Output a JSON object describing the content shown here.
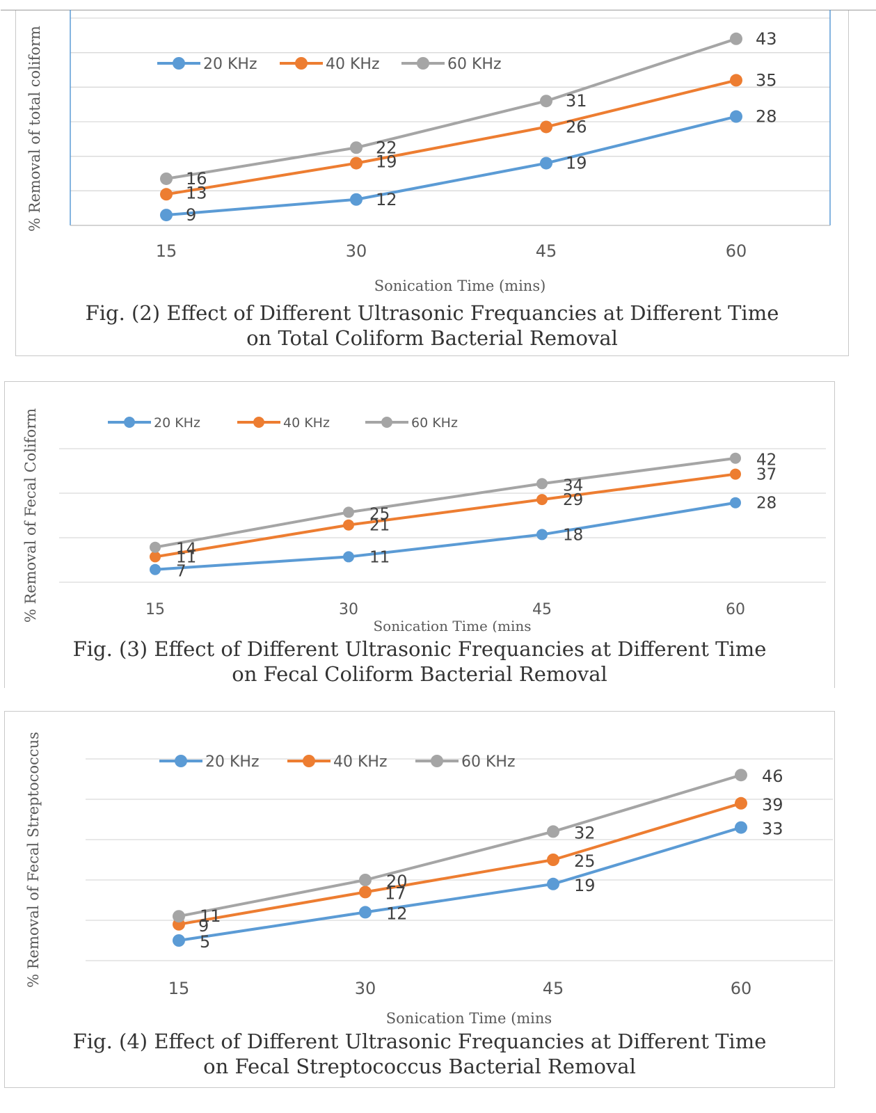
{
  "colors": {
    "s20": "#5b9bd5",
    "s40": "#ed7d31",
    "s60": "#a5a5a5",
    "grid": "#d9d9d9",
    "axis_text": "#595959",
    "label_text": "#404040"
  },
  "chart_data": [
    {
      "type": "line",
      "categories": [
        "15",
        "30",
        "45",
        "60"
      ],
      "series": [
        {
          "name": "20 KHz",
          "values": [
            9,
            12,
            19,
            28
          ],
          "color": "#5b9bd5"
        },
        {
          "name": "40 KHz",
          "values": [
            13,
            19,
            26,
            35
          ],
          "color": "#ed7d31"
        },
        {
          "name": "60 KHz",
          "values": [
            16,
            22,
            31,
            43
          ],
          "color": "#a5a5a5"
        }
      ],
      "xlabel": "Sonication Time (mins)",
      "ylabel": "% Removal of total coliform",
      "caption_line1": "Fig. (2) Effect of Different Ultrasonic Frequancies at Different Time",
      "caption_line2": "on Total Coliform Bacterial Removal",
      "legend_position": "top-left",
      "grid": true
    },
    {
      "type": "line",
      "categories": [
        "15",
        "30",
        "45",
        "60"
      ],
      "series": [
        {
          "name": "20 KHz",
          "values": [
            7,
            11,
            18,
            28
          ],
          "color": "#5b9bd5"
        },
        {
          "name": "40 KHz",
          "values": [
            11,
            21,
            29,
            37
          ],
          "color": "#ed7d31"
        },
        {
          "name": "60 KHz",
          "values": [
            14,
            25,
            34,
            42
          ],
          "color": "#a5a5a5"
        }
      ],
      "xlabel": "Sonication Time (mins",
      "ylabel": "% Removal of Fecal Coliform",
      "caption_line1": "Fig. (3) Effect of Different Ultrasonic Frequancies at Different Time",
      "caption_line2": "on Fecal Coliform Bacterial Removal",
      "legend_position": "top-left",
      "grid": true
    },
    {
      "type": "line",
      "categories": [
        "15",
        "30",
        "45",
        "60"
      ],
      "series": [
        {
          "name": "20 KHz",
          "values": [
            5,
            12,
            19,
            33
          ],
          "color": "#5b9bd5"
        },
        {
          "name": "40 KHz",
          "values": [
            9,
            17,
            25,
            39
          ],
          "color": "#ed7d31"
        },
        {
          "name": "60 KHz",
          "values": [
            11,
            20,
            32,
            46
          ],
          "color": "#a5a5a5"
        }
      ],
      "xlabel": "Sonication Time (mins",
      "ylabel": "% Removal of Fecal Streptococcus",
      "caption_line1": "Fig. (4) Effect of Different Ultrasonic Frequancies at Different Time",
      "caption_line2": "on Fecal Streptococcus Bacterial Removal",
      "legend_position": "top-left",
      "grid": true
    }
  ]
}
